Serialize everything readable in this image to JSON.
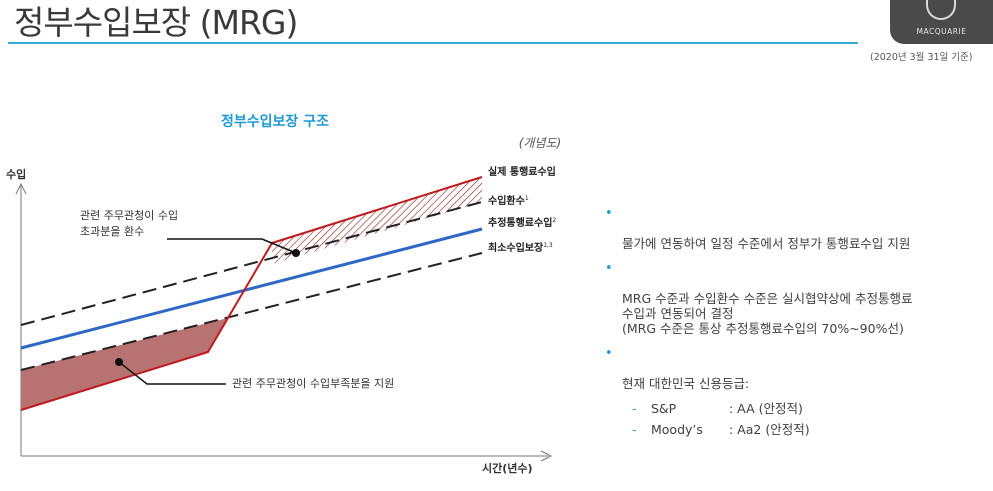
{
  "header": {
    "title": "정부수입보장 (MRG)",
    "logo_text": "MACQUARIE",
    "date_note": "(2020년 3월 31일 기준)"
  },
  "diagram": {
    "title": "정부수입보장 구조",
    "note": "(개념도)",
    "y_axis_label": "수입",
    "x_axis_label": "시간(년수)",
    "lines": {
      "actual": "실제 통행료수입",
      "cap": "수입환수",
      "cap_sup": "1",
      "projected": "추정통행료수입",
      "projected_sup": "2",
      "minimum": "최소수입보장",
      "minimum_sup": "1,3"
    },
    "callout_excess_line1": "관련 주무관청이 수입",
    "callout_excess_line2": "초과분을 환수",
    "callout_shortfall": "관련 주무관청이 수입부족분을 지원",
    "colors": {
      "actual": "#c0191e",
      "projected": "#2f67c5",
      "shortfall_fill": "#b87272",
      "title": "#1f9ad6"
    }
  },
  "bullets": {
    "b1": "물가에 연동하여 일정 수준에서 정부가 통행료수입 지원",
    "b2": "MRG 수준과 수입환수 수준은 실시협약상에 추정통행료\n수입과 연동되어 결정\n(MRG 수준은 통상 추정통행료수입의 70%~90%선)",
    "b3": "현재 대한민국 신용등급:",
    "sub1_label": "S&P",
    "sub1_value": ": AA (안정적)",
    "sub2_label": "Moody’s",
    "sub2_value": ": Aa2 (안정적)"
  }
}
